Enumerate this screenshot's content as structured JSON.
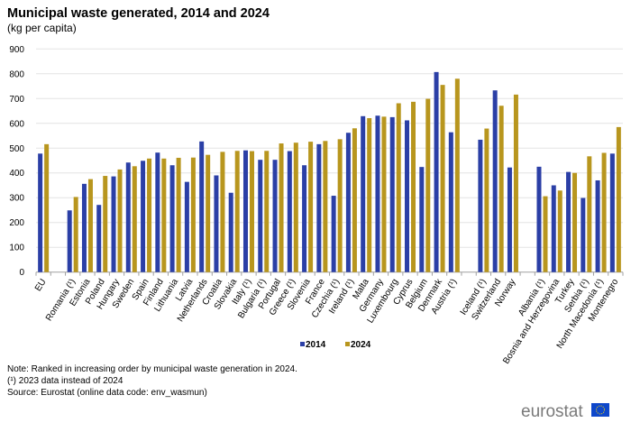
{
  "chart_data": {
    "type": "bar",
    "title": "Municipal waste generated, 2014 and 2024",
    "subtitle": "(kg per capita)",
    "ylim": [
      0,
      900
    ],
    "yticks": [
      0,
      100,
      200,
      300,
      400,
      500,
      600,
      700,
      800,
      900
    ],
    "grid": true,
    "legend_placement": "bottom",
    "groups": [
      [
        "EU"
      ],
      [
        "Romania (¹)",
        "Estonia",
        "Poland",
        "Hungary",
        "Sweden",
        "Spain",
        "Finland",
        "Lithuania",
        "Latvia",
        "Netherlands",
        "Croatia",
        "Slovakia",
        "Italy (¹)",
        "Bulgaria (¹)",
        "Portugal",
        "Greece (¹)",
        "Slovenia",
        "France",
        "Czechia (¹)",
        "Ireland (¹)",
        "Malta",
        "Germany",
        "Luxembourg",
        "Cyprus",
        "Belgium",
        "Denmark",
        "Austria (¹)"
      ],
      [
        "Iceland (¹)",
        "Switzerland",
        "Norway"
      ],
      [
        "Albania (¹)",
        "Bosnia and Herzegovina",
        "Turkey",
        "Serbia (¹)",
        "North Macedonia (¹)",
        "Montenegro"
      ]
    ],
    "series": [
      {
        "name": "2014",
        "color": "#2B3FA6",
        "values": [
          [
            478
          ],
          [
            249,
            356,
            271,
            386,
            442,
            449,
            482,
            431,
            364,
            527,
            390,
            320,
            491,
            453,
            453,
            488,
            431,
            516,
            308,
            562,
            629,
            631,
            625,
            612,
            424,
            807,
            564
          ],
          [
            534,
            733,
            422
          ],
          [
            425,
            350,
            404,
            299,
            370,
            478
          ]
        ]
      },
      {
        "name": "2024",
        "color": "#B8961E",
        "values": [
          [
            516
          ],
          [
            303,
            375,
            388,
            414,
            427,
            458,
            458,
            461,
            462,
            473,
            485,
            489,
            488,
            489,
            519,
            522,
            526,
            529,
            536,
            580,
            621,
            627,
            681,
            687,
            699,
            755,
            780
          ],
          [
            579,
            671,
            716
          ],
          [
            306,
            329,
            400,
            467,
            481,
            585
          ]
        ]
      }
    ]
  },
  "notes": [
    "Note: Ranked in increasing order by municipal waste generation in 2024.",
    "(¹) 2023 data instead of 2024",
    "Source: Eurostat (online data code: env_wasmun)"
  ],
  "logo": {
    "text": "eurostat",
    "color": "#7a7a7a",
    "flag_color": "#0E47CB"
  }
}
